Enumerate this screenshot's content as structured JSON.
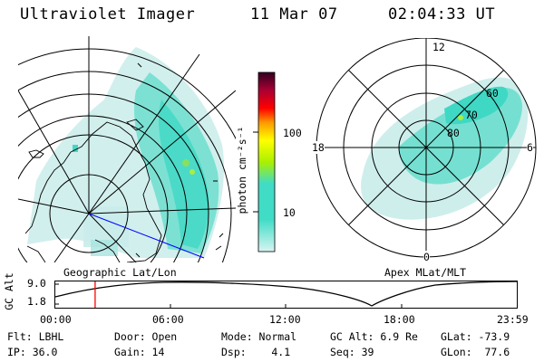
{
  "header": {
    "instrument": "Ultraviolet Imager",
    "date": "11 Mar 07",
    "time": "02:04:33 UT"
  },
  "geo_panel": {
    "label": "Geographic Lat/Lon"
  },
  "apex_panel": {
    "label": "Apex MLat/MLT",
    "mlt_labels": {
      "top": "12",
      "left": "18",
      "right": "6",
      "bottom": "0"
    },
    "lat_labels": [
      "80",
      "70",
      "60"
    ]
  },
  "colorbar": {
    "unit_label": "photon cm⁻²s⁻¹",
    "ticks": [
      "100",
      "10"
    ],
    "scale": "log",
    "colors": [
      "#c7eef0",
      "#40dcc6",
      "#aaf000",
      "#ffff00",
      "#ff9900",
      "#ff0000",
      "#aa0033",
      "#300020"
    ]
  },
  "altitude_plot": {
    "ylabel": "GC Alt",
    "yticks": [
      "9.0",
      "1.8"
    ],
    "xticks": [
      "00:00",
      "06:00",
      "12:00",
      "18:00",
      "23:59"
    ],
    "marker_time": "02:04",
    "marker_color": "#ff0000"
  },
  "meta": {
    "row1": {
      "flt": "Flt: LBHL",
      "door": "Door: Open",
      "mode": "Mode: Normal",
      "gcalt": "GC Alt: 6.9 Re",
      "glat": "GLat: -73.9"
    },
    "row2": {
      "ip": "IP: 36.0",
      "gain": "Gain: 14",
      "dsp": "Dsp:    4.1",
      "seq": "Seq: 39",
      "glon": "GLon:  77.6"
    }
  }
}
